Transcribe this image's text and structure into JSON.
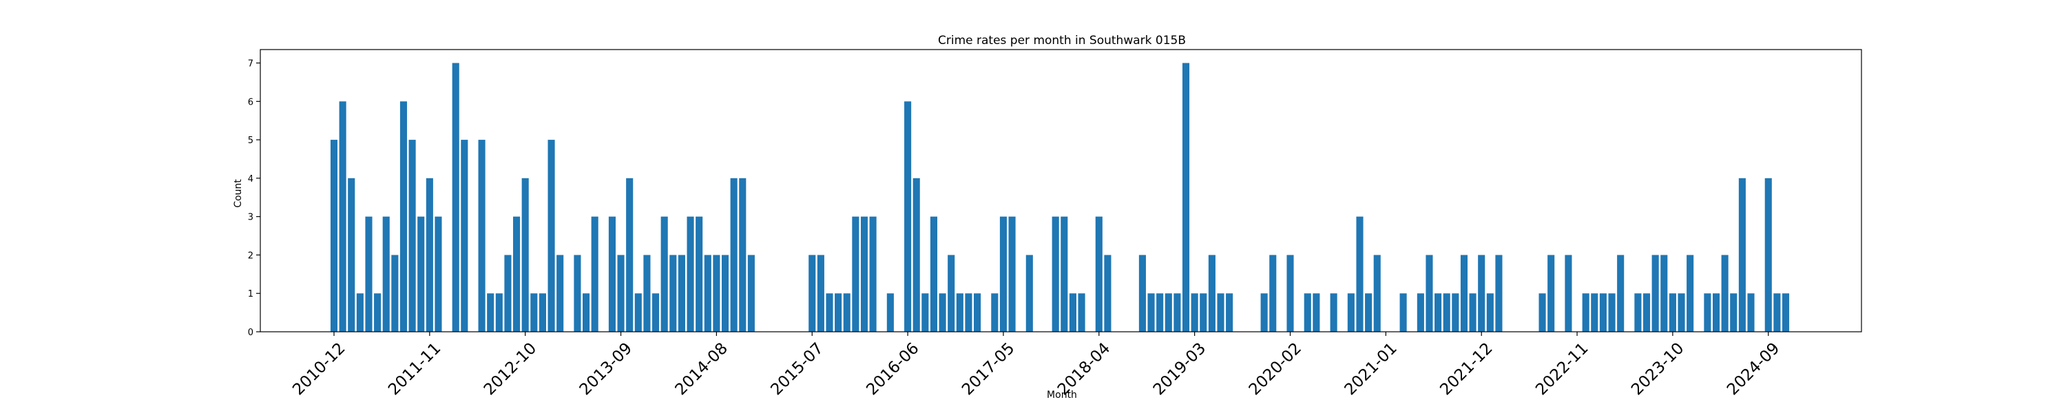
{
  "chart_data": {
    "type": "bar",
    "title": "Crime rates per month in Southwark 015B",
    "xlabel": "Month",
    "ylabel": "Count",
    "ylim": [
      0,
      7.35
    ],
    "yticks": [
      0,
      1,
      2,
      3,
      4,
      5,
      6,
      7
    ],
    "xtick_labels": [
      "2010-12",
      "2011-11",
      "2012-10",
      "2013-09",
      "2014-08",
      "2015-07",
      "2016-06",
      "2017-05",
      "2018-04",
      "2019-03",
      "2020-02",
      "2021-01",
      "2021-12",
      "2022-11",
      "2023-10",
      "2024-09"
    ],
    "grid": false,
    "color": "#1f77b4",
    "bars": [
      {
        "x": "2010-12",
        "value": 5
      },
      {
        "x": "2011-01",
        "value": 6
      },
      {
        "x": "2011-02",
        "value": 4
      },
      {
        "x": "2011-03",
        "value": 1
      },
      {
        "x": "2011-04",
        "value": 3
      },
      {
        "x": "2011-05",
        "value": 1
      },
      {
        "x": "2011-06",
        "value": 3
      },
      {
        "x": "2011-07",
        "value": 2
      },
      {
        "x": "2011-08",
        "value": 6
      },
      {
        "x": "2011-09",
        "value": 5
      },
      {
        "x": "2011-10",
        "value": 3
      },
      {
        "x": "2011-11",
        "value": 4
      },
      {
        "x": "2011-12",
        "value": 3
      },
      {
        "x": "2012-02",
        "value": 7
      },
      {
        "x": "2012-03",
        "value": 5
      },
      {
        "x": "2012-05",
        "value": 5
      },
      {
        "x": "2012-06",
        "value": 1
      },
      {
        "x": "2012-07",
        "value": 1
      },
      {
        "x": "2012-08",
        "value": 2
      },
      {
        "x": "2012-09",
        "value": 3
      },
      {
        "x": "2012-10",
        "value": 4
      },
      {
        "x": "2012-11",
        "value": 1
      },
      {
        "x": "2012-12",
        "value": 1
      },
      {
        "x": "2013-01",
        "value": 5
      },
      {
        "x": "2013-02",
        "value": 2
      },
      {
        "x": "2013-04",
        "value": 2
      },
      {
        "x": "2013-05",
        "value": 1
      },
      {
        "x": "2013-06",
        "value": 3
      },
      {
        "x": "2013-08",
        "value": 3
      },
      {
        "x": "2013-09",
        "value": 2
      },
      {
        "x": "2013-10",
        "value": 4
      },
      {
        "x": "2013-11",
        "value": 1
      },
      {
        "x": "2013-12",
        "value": 2
      },
      {
        "x": "2014-01",
        "value": 1
      },
      {
        "x": "2014-02",
        "value": 3
      },
      {
        "x": "2014-03",
        "value": 2
      },
      {
        "x": "2014-04",
        "value": 2
      },
      {
        "x": "2014-05",
        "value": 3
      },
      {
        "x": "2014-06",
        "value": 3
      },
      {
        "x": "2014-07",
        "value": 2
      },
      {
        "x": "2014-08",
        "value": 2
      },
      {
        "x": "2014-09",
        "value": 2
      },
      {
        "x": "2014-10",
        "value": 4
      },
      {
        "x": "2014-11",
        "value": 4
      },
      {
        "x": "2014-12",
        "value": 2
      },
      {
        "x": "2015-07",
        "value": 2
      },
      {
        "x": "2015-08",
        "value": 2
      },
      {
        "x": "2015-09",
        "value": 1
      },
      {
        "x": "2015-10",
        "value": 1
      },
      {
        "x": "2015-11",
        "value": 1
      },
      {
        "x": "2015-12",
        "value": 3
      },
      {
        "x": "2016-01",
        "value": 3
      },
      {
        "x": "2016-02",
        "value": 3
      },
      {
        "x": "2016-04",
        "value": 1
      },
      {
        "x": "2016-06",
        "value": 6
      },
      {
        "x": "2016-07",
        "value": 4
      },
      {
        "x": "2016-08",
        "value": 1
      },
      {
        "x": "2016-09",
        "value": 3
      },
      {
        "x": "2016-10",
        "value": 1
      },
      {
        "x": "2016-11",
        "value": 2
      },
      {
        "x": "2016-12",
        "value": 1
      },
      {
        "x": "2017-01",
        "value": 1
      },
      {
        "x": "2017-02",
        "value": 1
      },
      {
        "x": "2017-04",
        "value": 1
      },
      {
        "x": "2017-05",
        "value": 3
      },
      {
        "x": "2017-06",
        "value": 3
      },
      {
        "x": "2017-08",
        "value": 2
      },
      {
        "x": "2017-11",
        "value": 3
      },
      {
        "x": "2017-12",
        "value": 3
      },
      {
        "x": "2018-01",
        "value": 1
      },
      {
        "x": "2018-02",
        "value": 1
      },
      {
        "x": "2018-04",
        "value": 3
      },
      {
        "x": "2018-05",
        "value": 2
      },
      {
        "x": "2018-09",
        "value": 2
      },
      {
        "x": "2018-10",
        "value": 1
      },
      {
        "x": "2018-11",
        "value": 1
      },
      {
        "x": "2018-12",
        "value": 1
      },
      {
        "x": "2019-01",
        "value": 1
      },
      {
        "x": "2019-02",
        "value": 7
      },
      {
        "x": "2019-03",
        "value": 1
      },
      {
        "x": "2019-04",
        "value": 1
      },
      {
        "x": "2019-05",
        "value": 2
      },
      {
        "x": "2019-06",
        "value": 1
      },
      {
        "x": "2019-07",
        "value": 1
      },
      {
        "x": "2019-11",
        "value": 1
      },
      {
        "x": "2019-12",
        "value": 2
      },
      {
        "x": "2020-02",
        "value": 2
      },
      {
        "x": "2020-04",
        "value": 1
      },
      {
        "x": "2020-05",
        "value": 1
      },
      {
        "x": "2020-07",
        "value": 1
      },
      {
        "x": "2020-09",
        "value": 1
      },
      {
        "x": "2020-10",
        "value": 3
      },
      {
        "x": "2020-11",
        "value": 1
      },
      {
        "x": "2020-12",
        "value": 2
      },
      {
        "x": "2021-03",
        "value": 1
      },
      {
        "x": "2021-05",
        "value": 1
      },
      {
        "x": "2021-06",
        "value": 2
      },
      {
        "x": "2021-07",
        "value": 1
      },
      {
        "x": "2021-08",
        "value": 1
      },
      {
        "x": "2021-09",
        "value": 1
      },
      {
        "x": "2021-10",
        "value": 2
      },
      {
        "x": "2021-11",
        "value": 1
      },
      {
        "x": "2021-12",
        "value": 2
      },
      {
        "x": "2022-01",
        "value": 1
      },
      {
        "x": "2022-02",
        "value": 2
      },
      {
        "x": "2022-07",
        "value": 1
      },
      {
        "x": "2022-08",
        "value": 2
      },
      {
        "x": "2022-10",
        "value": 2
      },
      {
        "x": "2022-12",
        "value": 1
      },
      {
        "x": "2023-01",
        "value": 1
      },
      {
        "x": "2023-02",
        "value": 1
      },
      {
        "x": "2023-03",
        "value": 1
      },
      {
        "x": "2023-04",
        "value": 2
      },
      {
        "x": "2023-06",
        "value": 1
      },
      {
        "x": "2023-07",
        "value": 1
      },
      {
        "x": "2023-08",
        "value": 2
      },
      {
        "x": "2023-09",
        "value": 2
      },
      {
        "x": "2023-10",
        "value": 1
      },
      {
        "x": "2023-11",
        "value": 1
      },
      {
        "x": "2023-12",
        "value": 2
      },
      {
        "x": "2024-02",
        "value": 1
      },
      {
        "x": "2024-03",
        "value": 1
      },
      {
        "x": "2024-04",
        "value": 2
      },
      {
        "x": "2024-05",
        "value": 1
      },
      {
        "x": "2024-06",
        "value": 4
      },
      {
        "x": "2024-07",
        "value": 1
      },
      {
        "x": "2024-09",
        "value": 4
      },
      {
        "x": "2024-10",
        "value": 1
      },
      {
        "x": "2024-11",
        "value": 1
      }
    ]
  }
}
